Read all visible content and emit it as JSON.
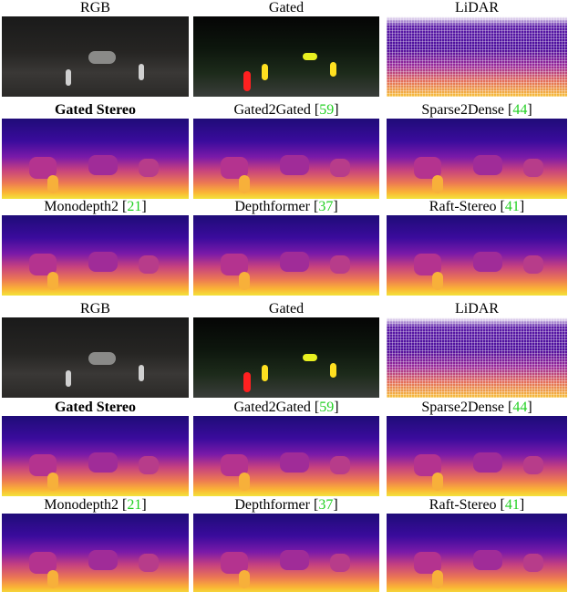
{
  "figure": {
    "blocks": [
      {
        "rows": [
          [
            {
              "label": "RGB"
            },
            {
              "label": "Gated"
            },
            {
              "label": "LiDAR"
            }
          ],
          [
            {
              "label": "Gated Stereo",
              "bold": true
            },
            {
              "label": "Gated2Gated [",
              "cite": "59",
              "after": "]"
            },
            {
              "label": "Sparse2Dense [",
              "cite": "44",
              "after": "]"
            }
          ],
          [
            {
              "label": "Monodepth2 [",
              "cite": "21",
              "after": "]"
            },
            {
              "label": "Depthformer [",
              "cite": "37",
              "after": "]"
            },
            {
              "label": "Raft-Stereo [",
              "cite": "41",
              "after": "]"
            }
          ]
        ]
      },
      {
        "rows": [
          [
            {
              "label": "RGB"
            },
            {
              "label": "Gated"
            },
            {
              "label": "LiDAR"
            }
          ],
          [
            {
              "label": "Gated Stereo",
              "bold": true
            },
            {
              "label": "Gated2Gated [",
              "cite": "59",
              "after": "]"
            },
            {
              "label": "Sparse2Dense [",
              "cite": "44",
              "after": "]"
            }
          ],
          [
            {
              "label": "Monodepth2 [",
              "cite": "21",
              "after": "]"
            },
            {
              "label": "Depthformer [",
              "cite": "37",
              "after": "]"
            },
            {
              "label": "Raft-Stereo [",
              "cite": "41",
              "after": "]"
            }
          ]
        ]
      }
    ]
  }
}
